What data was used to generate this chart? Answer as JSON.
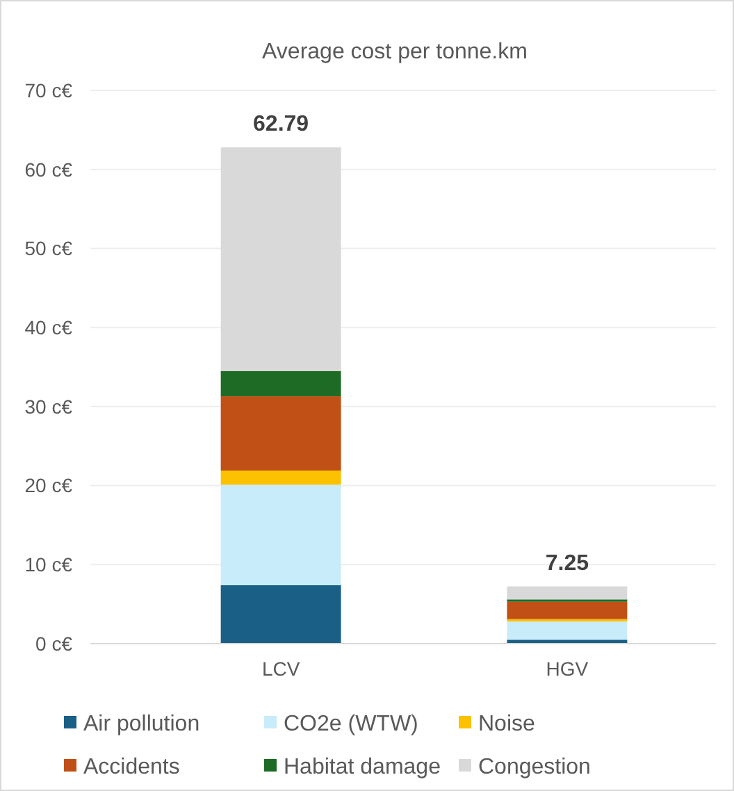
{
  "chart_data": {
    "type": "bar",
    "title": "Average cost per tonne.km",
    "categories": [
      "LCV",
      "HGV"
    ],
    "stacked": true,
    "series": [
      {
        "name": "Air pollution",
        "color": "#1a5f86",
        "values": [
          7.4,
          0.5
        ]
      },
      {
        "name": "CO2e (WTW)",
        "color": "#c9ecfb",
        "values": [
          12.7,
          2.3
        ]
      },
      {
        "name": "Noise",
        "color": "#fcc100",
        "values": [
          1.8,
          0.3
        ]
      },
      {
        "name": "Accidents",
        "color": "#c05016",
        "values": [
          9.4,
          2.2
        ]
      },
      {
        "name": "Habitat damage",
        "color": "#1e6b26",
        "values": [
          3.2,
          0.3
        ]
      },
      {
        "name": "Congestion",
        "color": "#d9d9d9",
        "values": [
          28.29,
          1.65
        ]
      }
    ],
    "totals": [
      "62.79",
      "7.25"
    ],
    "ylim": [
      0,
      70
    ],
    "yticks": [
      {
        "value": 0,
        "label": "0 c€"
      },
      {
        "value": 10,
        "label": "10 c€"
      },
      {
        "value": 20,
        "label": "20 c€"
      },
      {
        "value": 30,
        "label": "30 c€"
      },
      {
        "value": 40,
        "label": "40 c€"
      },
      {
        "value": 50,
        "label": "50 c€"
      },
      {
        "value": 60,
        "label": "60 c€"
      },
      {
        "value": 70,
        "label": "70 c€"
      }
    ],
    "grid": "y",
    "legend": "bottom"
  }
}
